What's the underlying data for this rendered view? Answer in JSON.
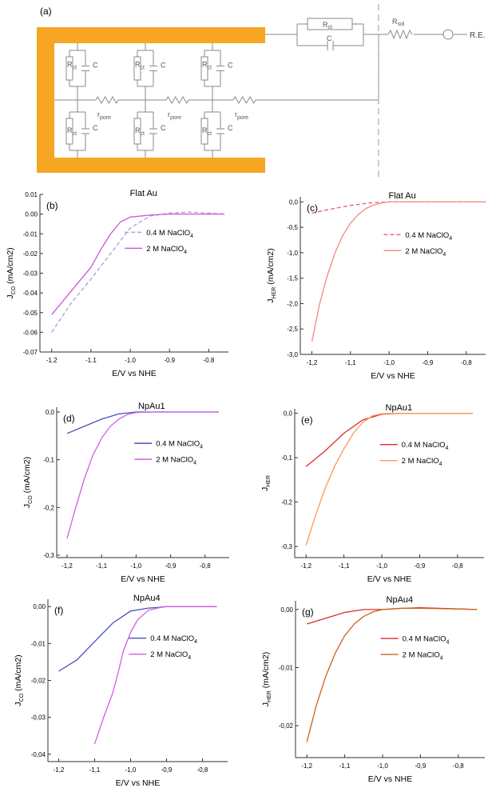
{
  "panel_a": {
    "label": "(a)",
    "rct_main": "R",
    "rct_main_sub": "ct",
    "c_main": "C",
    "rsol": "R",
    "rsol_sub": "sol",
    "re": "R.E.",
    "node_r": "R",
    "node_r_sub": "ct",
    "node_c": "C",
    "rpore": "r",
    "rpore_sub": "pore"
  },
  "chart_data": [
    {
      "id": "b",
      "label": "(b)",
      "type": "line",
      "title": "Flat Au",
      "xlabel": "E/V vs NHE",
      "ylabel": "J",
      "ylabel_sub": "CO",
      "ylabel_unit": " (mA/cm",
      "xlim": [
        -1.23,
        -0.75
      ],
      "ylim": [
        -0.07,
        0.01
      ],
      "xticks": [
        -1.2,
        -1.1,
        -1.0,
        -0.9,
        -0.8
      ],
      "xticklabels": [
        "-1.2",
        "-1.1",
        "-1.0",
        "-0.9",
        "-0.8"
      ],
      "yticks": [
        0.01,
        0.0,
        -0.01,
        -0.02,
        -0.03,
        -0.04,
        -0.05,
        -0.06,
        -0.07
      ],
      "yticklabels": [
        "0.01",
        "0.00",
        "-0.01",
        "-0.02",
        "-0.03",
        "-0.04",
        "-0.05",
        "-0.06",
        "-0.07"
      ],
      "legend": "top-right",
      "series": [
        {
          "name": "0.4 M NaClO",
          "name_sub": "4",
          "color": "#a99be0",
          "dash": "5,3",
          "x": [
            -1.2,
            -1.15,
            -1.1,
            -1.05,
            -1.0,
            -0.95,
            -0.9,
            -0.85,
            -0.8,
            -0.76
          ],
          "y": [
            -0.06,
            -0.045,
            -0.033,
            -0.02,
            -0.007,
            -0.001,
            0.0005,
            0.001,
            0.0005,
            0.0
          ]
        },
        {
          "name": "2 M NaClO",
          "name_sub": "4",
          "color": "#cc55dd",
          "dash": "",
          "x": [
            -1.2,
            -1.15,
            -1.1,
            -1.075,
            -1.05,
            -1.025,
            -1.0,
            -0.95,
            -0.9,
            -0.85,
            -0.8,
            -0.76
          ],
          "y": [
            -0.051,
            -0.039,
            -0.027,
            -0.018,
            -0.01,
            -0.004,
            -0.0015,
            -0.0005,
            0.0,
            0.0,
            0.0,
            0.0
          ]
        }
      ]
    },
    {
      "id": "c",
      "label": "(c)",
      "type": "line",
      "title": "Flat Au",
      "xlabel": "E/V vs NHE",
      "ylabel": "J",
      "ylabel_sub": "HER",
      "ylabel_unit": " (mA/cm",
      "xlim": [
        -1.23,
        -0.75
      ],
      "ylim": [
        -3.0,
        0.1
      ],
      "xticks": [
        -1.2,
        -1.1,
        -1.0,
        -0.9,
        -0.8
      ],
      "xticklabels": [
        "-1,2",
        "-1,1",
        "-1,0",
        "-0,9",
        "-0,8"
      ],
      "yticks": [
        0.0,
        -0.5,
        -1.0,
        -1.5,
        -2.0,
        -2.5,
        -3.0
      ],
      "yticklabels": [
        "0,0",
        "-0,5",
        "-1,0",
        "-1,5",
        "-2,0",
        "-2,5",
        "-3,0"
      ],
      "legend": "top-right",
      "series": [
        {
          "name": "0.4 M NaClO",
          "name_sub": "4",
          "color": "#e0607a",
          "dash": "5,3",
          "x": [
            -1.2,
            -1.15,
            -1.1,
            -1.05,
            -1.0,
            -0.95,
            -0.9,
            -0.8,
            -0.75
          ],
          "y": [
            -0.22,
            -0.14,
            -0.07,
            -0.02,
            0.0,
            0.0,
            0.0,
            0.0,
            0.0
          ]
        },
        {
          "name": "2 M NaClO",
          "name_sub": "4",
          "color": "#f08a80",
          "dash": "",
          "x": [
            -1.2,
            -1.18,
            -1.16,
            -1.14,
            -1.12,
            -1.1,
            -1.08,
            -1.06,
            -1.04,
            -1.02,
            -1.0,
            -0.9,
            -0.8,
            -0.75
          ],
          "y": [
            -2.75,
            -2.0,
            -1.45,
            -1.0,
            -0.66,
            -0.42,
            -0.25,
            -0.13,
            -0.06,
            -0.02,
            0.0,
            0.0,
            0.0,
            0.0
          ]
        }
      ]
    },
    {
      "id": "d",
      "label": "(d)",
      "type": "line",
      "title": "NpAu1",
      "xlabel": "E/V vs NHE",
      "ylabel": "J",
      "ylabel_sub": "CO",
      "ylabel_unit": " (mA/cm",
      "xlim": [
        -1.23,
        -0.73
      ],
      "ylim": [
        -0.305,
        0.01
      ],
      "xticks": [
        -1.2,
        -1.1,
        -1.0,
        -0.9,
        -0.8
      ],
      "xticklabels": [
        "-1,2",
        "-1,1",
        "-1,0",
        "-0,9",
        "-0,8"
      ],
      "yticks": [
        0.0,
        -0.1,
        -0.2,
        -0.3
      ],
      "yticklabels": [
        "0,0",
        "-0,1",
        "-0,2",
        "-0,3"
      ],
      "legend": "top-right",
      "series": [
        {
          "name": "0.4 M NaClO",
          "name_sub": "4",
          "color": "#4b4fc0",
          "dash": "",
          "x": [
            -1.2,
            -1.15,
            -1.1,
            -1.05,
            -1.0,
            -0.95,
            -0.9,
            -0.8,
            -0.76
          ],
          "y": [
            -0.045,
            -0.03,
            -0.015,
            -0.004,
            0.0,
            0.0,
            0.0,
            0.0,
            0.0
          ]
        },
        {
          "name": "2 M NaClO",
          "name_sub": "4",
          "color": "#d060e0",
          "dash": "",
          "x": [
            -1.2,
            -1.175,
            -1.15,
            -1.125,
            -1.1,
            -1.075,
            -1.05,
            -1.025,
            -1.0,
            -0.95,
            -0.9,
            -0.8,
            -0.76
          ],
          "y": [
            -0.265,
            -0.2,
            -0.14,
            -0.09,
            -0.055,
            -0.03,
            -0.015,
            -0.005,
            -0.001,
            0.0,
            0.0,
            0.0,
            0.0
          ]
        }
      ]
    },
    {
      "id": "e",
      "label": "(e)",
      "type": "line",
      "title": "NpAu1",
      "xlabel": "E/V vs NHE",
      "ylabel": "J",
      "ylabel_sub": "HER",
      "ylabel_unit": "",
      "xlim": [
        -1.23,
        -0.73
      ],
      "ylim": [
        -0.325,
        0.01
      ],
      "xticks": [
        -1.2,
        -1.1,
        -1.0,
        -0.9,
        -0.8
      ],
      "xticklabels": [
        "-1,2",
        "-1,1",
        "-1,0",
        "-0,9",
        "-0,8"
      ],
      "yticks": [
        0.0,
        -0.1,
        -0.2,
        -0.3
      ],
      "yticklabels": [
        "0,0",
        "-0,1",
        "-0,2",
        "-0,3"
      ],
      "legend": "top-right",
      "series": [
        {
          "name": "0.4 M NaClO",
          "name_sub": "4",
          "color": "#dd2b2b",
          "dash": "",
          "x": [
            -1.2,
            -1.15,
            -1.1,
            -1.05,
            -1.0,
            -0.95,
            -0.9,
            -0.8,
            -0.76
          ],
          "y": [
            -0.12,
            -0.085,
            -0.045,
            -0.015,
            -0.002,
            0.0,
            0.0,
            0.0,
            0.0
          ]
        },
        {
          "name": "2 M NaClO",
          "name_sub": "4",
          "color": "#f59a5a",
          "dash": "",
          "x": [
            -1.2,
            -1.175,
            -1.15,
            -1.125,
            -1.1,
            -1.075,
            -1.05,
            -1.025,
            -1.0,
            -0.95,
            -0.9,
            -0.8,
            -0.76
          ],
          "y": [
            -0.297,
            -0.23,
            -0.17,
            -0.12,
            -0.08,
            -0.045,
            -0.02,
            -0.006,
            -0.001,
            0.0,
            0.0,
            0.0,
            0.0
          ]
        }
      ]
    },
    {
      "id": "f",
      "label": "(f)",
      "type": "line",
      "title": "NpAu4",
      "xlabel": "E/V vs NHE",
      "ylabel": "J",
      "ylabel_sub": "CO",
      "ylabel_unit": " (mA/cm",
      "xlim": [
        -1.23,
        -0.73
      ],
      "ylim": [
        -0.042,
        0.002
      ],
      "xticks": [
        -1.2,
        -1.1,
        -1.0,
        -0.9,
        -0.8
      ],
      "xticklabels": [
        "-1,2",
        "-1,1",
        "-1,0",
        "-0,9",
        "-0,8"
      ],
      "yticks": [
        0.0,
        -0.01,
        -0.02,
        -0.03,
        -0.04
      ],
      "yticklabels": [
        "0,00",
        "-0,01",
        "-0,02",
        "-0,03",
        "-0,04"
      ],
      "legend": "top-right",
      "series": [
        {
          "name": "0.4 M NaClO",
          "name_sub": "4",
          "color": "#4b4fc0",
          "dash": "",
          "x": [
            -1.2,
            -1.15,
            -1.1,
            -1.05,
            -1.0,
            -0.95,
            -0.92,
            -0.9,
            -0.8,
            -0.76
          ],
          "y": [
            -0.0175,
            -0.0145,
            -0.0095,
            -0.0045,
            -0.0012,
            -0.0004,
            -0.0002,
            0.0,
            0.0,
            0.0
          ]
        },
        {
          "name": "2 M NaClO",
          "name_sub": "4",
          "color": "#d060e0",
          "dash": "",
          "x": [
            -1.1,
            -1.075,
            -1.05,
            -1.035,
            -1.02,
            -1.0,
            -0.98,
            -0.95,
            -0.92,
            -0.9,
            -0.85,
            -0.8,
            -0.76
          ],
          "y": [
            -0.0372,
            -0.03,
            -0.0235,
            -0.018,
            -0.012,
            -0.007,
            -0.0035,
            -0.001,
            -0.0003,
            0.0,
            0.0,
            0.0,
            0.0
          ]
        }
      ]
    },
    {
      "id": "g",
      "label": "(g)",
      "type": "line",
      "title": "NpAu4",
      "xlabel": "E/V vs NHE",
      "ylabel": "J",
      "ylabel_sub": "HER",
      "ylabel_unit": " (mA/cm",
      "xlim": [
        -1.23,
        -0.73
      ],
      "ylim": [
        -0.0255,
        0.0015
      ],
      "xticks": [
        -1.2,
        -1.1,
        -1.0,
        -0.9,
        -0.8
      ],
      "xticklabels": [
        "-1,2",
        "-1,1",
        "-1,0",
        "-0,9",
        "-0,8"
      ],
      "yticks": [
        0.0,
        -0.01,
        -0.02
      ],
      "yticklabels": [
        "0,00",
        "-0,01",
        "-0,02"
      ],
      "legend": "top-right",
      "series": [
        {
          "name": "0.4 M NaClO",
          "name_sub": "4",
          "color": "#dd2b2b",
          "dash": "",
          "x": [
            -1.2,
            -1.15,
            -1.1,
            -1.05,
            -1.0,
            -0.95,
            -0.9,
            -0.85,
            -0.8,
            -0.75
          ],
          "y": [
            -0.0025,
            -0.0015,
            -0.0005,
            0.0,
            0.0,
            0.0002,
            0.0003,
            0.0002,
            0.0001,
            0.0
          ]
        },
        {
          "name": "2 M NaClO",
          "name_sub": "4",
          "color": "#c8641e",
          "dash": "",
          "x": [
            -1.2,
            -1.175,
            -1.15,
            -1.125,
            -1.1,
            -1.075,
            -1.05,
            -1.025,
            -1.0,
            -0.95,
            -0.9,
            -0.8,
            -0.75
          ],
          "y": [
            -0.0228,
            -0.0165,
            -0.0115,
            -0.0075,
            -0.0045,
            -0.0025,
            -0.0012,
            -0.0004,
            0.0,
            0.0002,
            0.0002,
            0.0001,
            0.0
          ]
        }
      ]
    }
  ]
}
